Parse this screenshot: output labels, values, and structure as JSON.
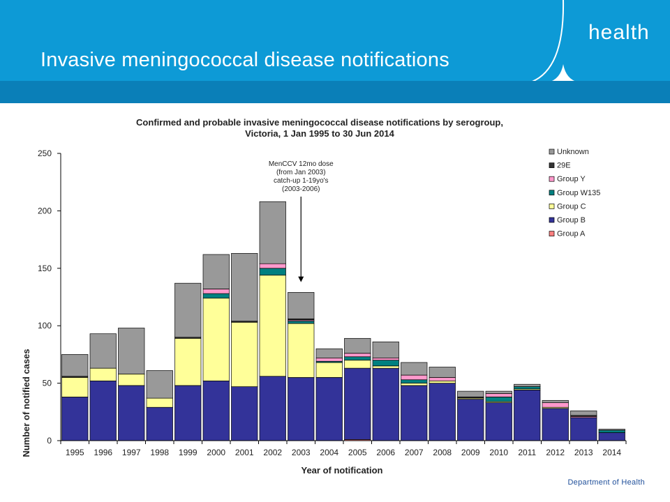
{
  "header": {
    "title": "Invasive meningococcal disease notifications",
    "brand": "health"
  },
  "footer": {
    "department": "Department of Health"
  },
  "colors": {
    "header_bg": "#0d9ad6",
    "header_stripe": "#0a7fb8",
    "Unknown": "#999999",
    "29E": "#333333",
    "Group Y": "#ff99cc",
    "Group W135": "#008080",
    "Group C": "#ffff99",
    "Group B": "#333399",
    "Group A": "#ff8080"
  },
  "chart_data": {
    "type": "bar",
    "stacked": true,
    "title_line1": "Confirmed and probable invasive meningococcal disease notifications by serogroup,",
    "title_line2": "Victoria, 1 Jan 1995 to 30 Jun 2014",
    "xlabel": "Year of notification",
    "ylabel": "Number of notified cases",
    "ylim": [
      0,
      250
    ],
    "yticks": [
      0,
      50,
      100,
      150,
      200,
      250
    ],
    "grid": false,
    "legend_position": "right",
    "categories": [
      "1995",
      "1996",
      "1997",
      "1998",
      "1999",
      "2000",
      "2001",
      "2002",
      "2003",
      "2004",
      "2005",
      "2006",
      "2007",
      "2008",
      "2009",
      "2010",
      "2011",
      "2012",
      "2013",
      "2014"
    ],
    "series": [
      {
        "name": "Group A",
        "values": [
          0,
          0,
          0,
          0,
          0,
          0,
          0,
          0,
          0,
          0,
          1,
          0,
          0,
          0,
          0,
          0,
          0,
          0,
          0,
          0
        ]
      },
      {
        "name": "Group B",
        "values": [
          38,
          52,
          48,
          29,
          48,
          52,
          47,
          56,
          55,
          55,
          62,
          63,
          48,
          50,
          36,
          33,
          44,
          28,
          20,
          7
        ]
      },
      {
        "name": "Group C",
        "values": [
          17,
          11,
          10,
          8,
          41,
          72,
          56,
          88,
          47,
          13,
          7,
          2,
          2,
          2,
          1,
          1,
          1,
          1,
          0,
          0
        ]
      },
      {
        "name": "Group W135",
        "values": [
          0,
          0,
          0,
          0,
          0,
          4,
          0,
          6,
          2,
          1,
          3,
          5,
          3,
          0,
          0,
          4,
          2,
          0,
          0,
          2
        ]
      },
      {
        "name": "Group Y",
        "values": [
          0,
          0,
          0,
          0,
          0,
          4,
          0,
          4,
          1,
          3,
          3,
          2,
          4,
          3,
          0,
          3,
          0,
          4,
          1,
          0
        ]
      },
      {
        "name": "29E",
        "values": [
          1,
          0,
          0,
          0,
          1,
          0,
          1,
          0,
          1,
          0,
          0,
          0,
          0,
          0,
          1,
          0,
          0,
          0,
          1,
          0
        ]
      },
      {
        "name": "Unknown",
        "values": [
          19,
          30,
          40,
          24,
          47,
          30,
          59,
          54,
          23,
          8,
          13,
          14,
          11,
          9,
          5,
          2,
          2,
          2,
          4,
          1
        ]
      }
    ],
    "legend_order": [
      "Unknown",
      "29E",
      "Group Y",
      "Group W135",
      "Group C",
      "Group B",
      "Group A"
    ],
    "annotation": {
      "lines": [
        "MenCCV 12mo dose",
        "(from Jan 2003)",
        "catch-up 1-19yo's",
        "(2003-2006)"
      ],
      "target_category": "2003",
      "target_value": 138
    }
  }
}
